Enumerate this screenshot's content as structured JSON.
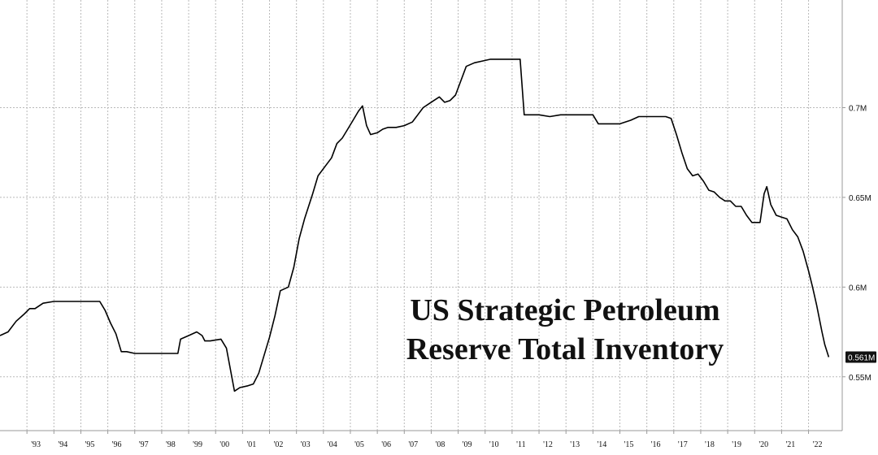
{
  "chart_data": {
    "type": "line",
    "title_lines": [
      "US Strategic Petroleum",
      "Reserve Total Inventory"
    ],
    "xlabel": "",
    "ylabel": "",
    "ylim": [
      0.52,
      0.76
    ],
    "xlim": [
      1992.0,
      2023.25
    ],
    "yticks": [
      0.55,
      0.6,
      0.65,
      0.7
    ],
    "ytick_labels": [
      "0.55M",
      "0.6M",
      "0.65M",
      "0.7M"
    ],
    "xticks": [
      1993,
      1994,
      1995,
      1996,
      1997,
      1998,
      1999,
      2000,
      2001,
      2002,
      2003,
      2004,
      2005,
      2006,
      2007,
      2008,
      2009,
      2010,
      2011,
      2012,
      2013,
      2014,
      2015,
      2016,
      2017,
      2018,
      2019,
      2020,
      2021,
      2022
    ],
    "xtick_labels": [
      "'93",
      "'94",
      "'95",
      "'96",
      "'97",
      "'98",
      "'99",
      "'00",
      "'01",
      "'02",
      "'03",
      "'04",
      "'05",
      "'06",
      "'07",
      "'08",
      "'09",
      "'10",
      "'11",
      "'12",
      "'13",
      "'14",
      "'15",
      "'16",
      "'17",
      "'18",
      "'19",
      "'20",
      "'21",
      "'22"
    ],
    "grid": true,
    "last_value_label": "0.561M",
    "series": [
      {
        "values": [
          [
            1992.0,
            0.573
          ],
          [
            1992.3,
            0.575
          ],
          [
            1992.6,
            0.581
          ],
          [
            1992.9,
            0.585
          ],
          [
            1993.1,
            0.588
          ],
          [
            1993.3,
            0.588
          ],
          [
            1993.6,
            0.591
          ],
          [
            1994.0,
            0.592
          ],
          [
            1994.5,
            0.592
          ],
          [
            1995.0,
            0.592
          ],
          [
            1995.5,
            0.592
          ],
          [
            1995.7,
            0.592
          ],
          [
            1995.9,
            0.587
          ],
          [
            1996.1,
            0.58
          ],
          [
            1996.3,
            0.574
          ],
          [
            1996.5,
            0.564
          ],
          [
            1996.7,
            0.564
          ],
          [
            1997.0,
            0.563
          ],
          [
            1997.5,
            0.563
          ],
          [
            1998.0,
            0.563
          ],
          [
            1998.5,
            0.563
          ],
          [
            1998.6,
            0.563
          ],
          [
            1998.7,
            0.571
          ],
          [
            1999.0,
            0.573
          ],
          [
            1999.3,
            0.575
          ],
          [
            1999.5,
            0.573
          ],
          [
            1999.6,
            0.57
          ],
          [
            1999.8,
            0.57
          ],
          [
            2000.2,
            0.571
          ],
          [
            2000.4,
            0.566
          ],
          [
            2000.7,
            0.542
          ],
          [
            2000.9,
            0.544
          ],
          [
            2001.2,
            0.545
          ],
          [
            2001.4,
            0.546
          ],
          [
            2001.6,
            0.552
          ],
          [
            2001.8,
            0.562
          ],
          [
            2002.0,
            0.572
          ],
          [
            2002.2,
            0.584
          ],
          [
            2002.4,
            0.598
          ],
          [
            2002.7,
            0.6
          ],
          [
            2002.9,
            0.611
          ],
          [
            2003.1,
            0.627
          ],
          [
            2003.3,
            0.638
          ],
          [
            2003.6,
            0.652
          ],
          [
            2003.8,
            0.662
          ],
          [
            2004.1,
            0.668
          ],
          [
            2004.3,
            0.672
          ],
          [
            2004.5,
            0.68
          ],
          [
            2004.7,
            0.683
          ],
          [
            2004.9,
            0.688
          ],
          [
            2005.1,
            0.693
          ],
          [
            2005.3,
            0.698
          ],
          [
            2005.45,
            0.701
          ],
          [
            2005.6,
            0.69
          ],
          [
            2005.75,
            0.685
          ],
          [
            2006.0,
            0.686
          ],
          [
            2006.2,
            0.688
          ],
          [
            2006.4,
            0.689
          ],
          [
            2006.7,
            0.689
          ],
          [
            2007.0,
            0.69
          ],
          [
            2007.3,
            0.692
          ],
          [
            2007.5,
            0.696
          ],
          [
            2007.7,
            0.7
          ],
          [
            2007.9,
            0.702
          ],
          [
            2008.1,
            0.704
          ],
          [
            2008.3,
            0.706
          ],
          [
            2008.5,
            0.703
          ],
          [
            2008.7,
            0.704
          ],
          [
            2008.9,
            0.707
          ],
          [
            2009.1,
            0.715
          ],
          [
            2009.3,
            0.723
          ],
          [
            2009.6,
            0.725
          ],
          [
            2009.9,
            0.726
          ],
          [
            2010.2,
            0.727
          ],
          [
            2010.5,
            0.727
          ],
          [
            2010.8,
            0.727
          ],
          [
            2011.1,
            0.727
          ],
          [
            2011.3,
            0.727
          ],
          [
            2011.45,
            0.696
          ],
          [
            2011.7,
            0.696
          ],
          [
            2012.0,
            0.696
          ],
          [
            2012.4,
            0.695
          ],
          [
            2012.8,
            0.696
          ],
          [
            2013.2,
            0.696
          ],
          [
            2013.6,
            0.696
          ],
          [
            2014.0,
            0.696
          ],
          [
            2014.2,
            0.691
          ],
          [
            2014.6,
            0.691
          ],
          [
            2015.0,
            0.691
          ],
          [
            2015.4,
            0.693
          ],
          [
            2015.7,
            0.695
          ],
          [
            2016.0,
            0.695
          ],
          [
            2016.4,
            0.695
          ],
          [
            2016.7,
            0.695
          ],
          [
            2016.9,
            0.694
          ],
          [
            2017.1,
            0.685
          ],
          [
            2017.3,
            0.675
          ],
          [
            2017.5,
            0.666
          ],
          [
            2017.7,
            0.662
          ],
          [
            2017.9,
            0.663
          ],
          [
            2018.1,
            0.659
          ],
          [
            2018.3,
            0.654
          ],
          [
            2018.5,
            0.653
          ],
          [
            2018.7,
            0.65
          ],
          [
            2018.9,
            0.648
          ],
          [
            2019.1,
            0.648
          ],
          [
            2019.3,
            0.645
          ],
          [
            2019.5,
            0.645
          ],
          [
            2019.7,
            0.64
          ],
          [
            2019.9,
            0.636
          ],
          [
            2020.1,
            0.636
          ],
          [
            2020.2,
            0.636
          ],
          [
            2020.35,
            0.652
          ],
          [
            2020.45,
            0.656
          ],
          [
            2020.6,
            0.646
          ],
          [
            2020.8,
            0.64
          ],
          [
            2021.0,
            0.639
          ],
          [
            2021.2,
            0.638
          ],
          [
            2021.4,
            0.632
          ],
          [
            2021.6,
            0.628
          ],
          [
            2021.8,
            0.62
          ],
          [
            2022.0,
            0.609
          ],
          [
            2022.15,
            0.6
          ],
          [
            2022.3,
            0.59
          ],
          [
            2022.5,
            0.575
          ],
          [
            2022.6,
            0.568
          ],
          [
            2022.75,
            0.561
          ]
        ]
      }
    ]
  }
}
